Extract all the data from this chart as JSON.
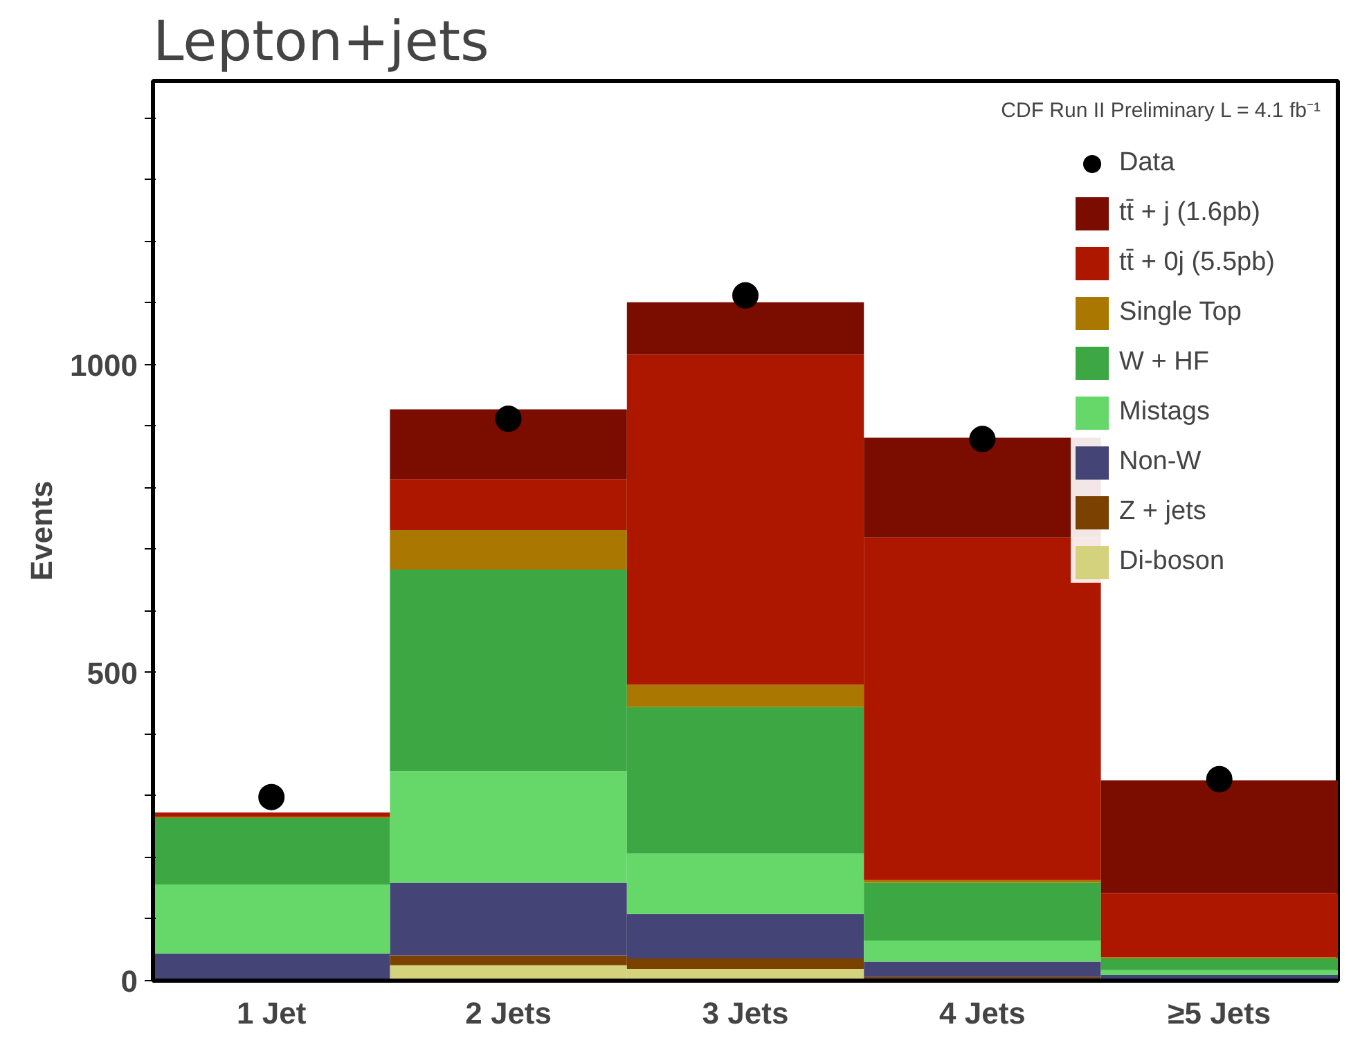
{
  "chart_data": {
    "type": "bar",
    "title": "Lepton+jets",
    "ylabel": "Events",
    "stacked": true,
    "grid": false,
    "legend": "top right",
    "annotations": [
      "CDF Run II Preliminary L = 4.1 fb⁻¹"
    ],
    "categories": [
      "1 Jet",
      "2 Jets",
      "3 Jets",
      "4 Jets",
      "≥5 Jets"
    ],
    "ylim": [
      0,
      1460
    ],
    "yticks": [
      0,
      {
        "value": 100,
        "label": null
      },
      {
        "value": 200,
        "label": null
      },
      {
        "value": 300,
        "label": null
      },
      {
        "value": 400,
        "label": null
      },
      500,
      {
        "value": 600,
        "label": null
      },
      {
        "value": 700,
        "label": null
      },
      {
        "value": 800,
        "label": null
      },
      {
        "value": 900,
        "label": null
      },
      1000,
      {
        "value": 1100,
        "label": null
      },
      {
        "value": 1200,
        "label": null
      },
      {
        "value": 1300,
        "label": null
      },
      {
        "value": 1400,
        "label": null
      }
    ],
    "series": [
      {
        "name": "Di-boson",
        "color": "#d4d27c",
        "values": [
          null,
          25,
          19,
          null,
          null
        ]
      },
      {
        "name": "Z + jets",
        "color": "#7a4100",
        "values": [
          2,
          16,
          17,
          6,
          1
        ]
      },
      {
        "name": "Non-W",
        "color": "#444576",
        "values": [
          42,
          118,
          72,
          25,
          8
        ]
      },
      {
        "name": "Mistags",
        "color": "#66d86a",
        "values": [
          112,
          181,
          98,
          34,
          8
        ]
      },
      {
        "name": "W + HF",
        "color": "#3da744",
        "values": [
          108,
          327,
          238,
          94,
          19
        ]
      },
      {
        "name": "Single Top",
        "color": "#aa7800",
        "values": [
          2,
          64,
          36,
          4,
          2
        ]
      },
      {
        "name": "tt̄ + 0j (5.5pb)",
        "color": "#ad1700",
        "values": [
          7,
          83,
          536,
          556,
          104
        ]
      },
      {
        "name": "tt̄ + j (1.6pb)",
        "color": "#7a0c00",
        "values": [
          0,
          113,
          85,
          162,
          183
        ]
      },
      {
        "name": "Data",
        "type": "scatter",
        "marker": "circle",
        "color": "#000000",
        "values": [
          298,
          912,
          1112,
          879,
          327
        ]
      }
    ]
  }
}
